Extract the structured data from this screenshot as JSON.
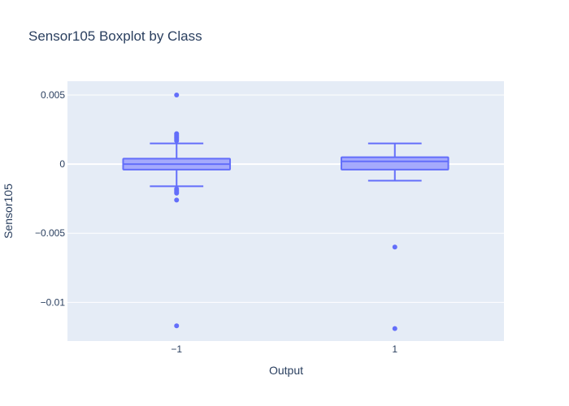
{
  "chart_data": {
    "type": "box",
    "title": "Sensor105 Boxplot by Class",
    "xlabel": "Output",
    "ylabel": "Sensor105",
    "categories": [
      "−1",
      "1"
    ],
    "ylim": [
      -0.0128,
      0.006
    ],
    "yticks": [
      0.005,
      0,
      -0.005,
      -0.01
    ],
    "ytick_labels": [
      "0.005",
      "0",
      "−0.005",
      "−0.01"
    ],
    "grid": true,
    "legend": "none",
    "colors": {
      "box_line": "#636efa",
      "box_fill": "#a5aafc",
      "plot_bg": "#e5ecf6",
      "grid": "#ffffff",
      "text": "#2a3f5f"
    },
    "boxes": [
      {
        "category": "−1",
        "lower_whisker": -0.0016,
        "q1": -0.0004,
        "median": 0.0,
        "q3": 0.0004,
        "upper_whisker": 0.0015,
        "outliers": [
          0.005,
          0.0022,
          0.0021,
          0.002,
          0.0019,
          0.0018,
          0.0017,
          -0.0018,
          -0.0019,
          -0.002,
          -0.0021,
          -0.0026,
          -0.0117
        ]
      },
      {
        "category": "1",
        "lower_whisker": -0.0012,
        "q1": -0.0004,
        "median": 0.0002,
        "q3": 0.0005,
        "upper_whisker": 0.0015,
        "outliers": [
          -0.006,
          -0.0119
        ]
      }
    ]
  }
}
